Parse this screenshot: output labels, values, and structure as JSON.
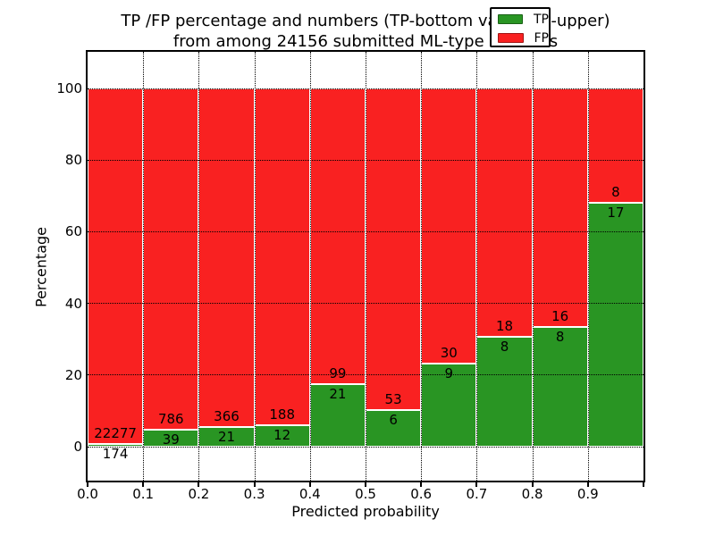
{
  "chart_data": {
    "type": "bar",
    "stacked": true,
    "normalized_to_percent": true,
    "title_line1": "TP /FP percentage and numbers (TP-bottom value, FP-upper)",
    "title_line2": "from among 24156 submitted ML-type contacts",
    "xlabel": "Predicted probability",
    "ylabel": "Percentage",
    "total_contacts": 24156,
    "grid": true,
    "legend_position": "upper-right",
    "legend": [
      {
        "label": "TP",
        "color": "#299523"
      },
      {
        "label": "FP",
        "color": "#f92121"
      }
    ],
    "colors": {
      "tp": "#299523",
      "fp": "#f92121",
      "grid": "#000000",
      "background": "#ffffff"
    },
    "y_ticks": [
      0,
      20,
      40,
      60,
      80,
      100
    ],
    "y_tick_labels": [
      "0",
      "20",
      "40",
      "60",
      "80",
      "100"
    ],
    "x_tick_values": [
      0.0,
      0.1,
      0.2,
      0.3,
      0.4,
      0.5,
      0.6,
      0.7,
      0.8,
      0.9
    ],
    "x_tick_labels": [
      "0.0",
      "0.1",
      "0.2",
      "0.3",
      "0.4",
      "0.5",
      "0.6",
      "0.7",
      "0.8",
      "0.9"
    ],
    "ylim_display": [
      0,
      100
    ],
    "bins": [
      {
        "range_start": 0.0,
        "range_end": 0.1,
        "tp": 174,
        "fp": 22277,
        "tp_pct": 0.8
      },
      {
        "range_start": 0.1,
        "range_end": 0.2,
        "tp": 39,
        "fp": 786,
        "tp_pct": 4.7
      },
      {
        "range_start": 0.2,
        "range_end": 0.3,
        "tp": 21,
        "fp": 366,
        "tp_pct": 5.4
      },
      {
        "range_start": 0.3,
        "range_end": 0.4,
        "tp": 12,
        "fp": 188,
        "tp_pct": 6.0
      },
      {
        "range_start": 0.4,
        "range_end": 0.5,
        "tp": 21,
        "fp": 99,
        "tp_pct": 17.5
      },
      {
        "range_start": 0.5,
        "range_end": 0.6,
        "tp": 6,
        "fp": 53,
        "tp_pct": 10.2
      },
      {
        "range_start": 0.6,
        "range_end": 0.7,
        "tp": 9,
        "fp": 30,
        "tp_pct": 23.1
      },
      {
        "range_start": 0.7,
        "range_end": 0.8,
        "tp": 8,
        "fp": 18,
        "tp_pct": 30.8
      },
      {
        "range_start": 0.8,
        "range_end": 0.9,
        "tp": 8,
        "fp": 16,
        "tp_pct": 33.3
      },
      {
        "range_start": 0.9,
        "range_end": 1.0,
        "tp": 17,
        "fp": 8,
        "tp_pct": 68.0
      }
    ]
  }
}
